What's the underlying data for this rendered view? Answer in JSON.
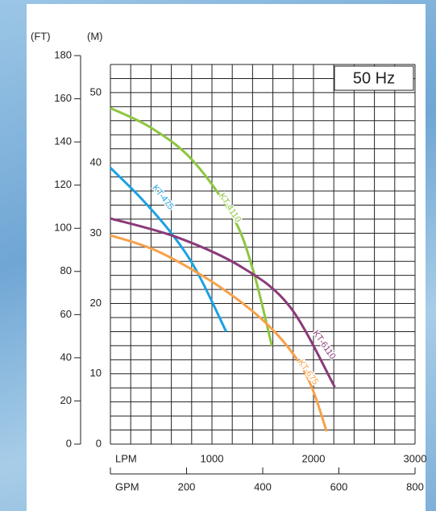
{
  "chart_data": {
    "type": "line",
    "y_label": "(M)",
    "y2_label": "(FT)",
    "x_label": "LPM",
    "x2_label": "GPM",
    "badge": "50 Hz",
    "ylim": [
      0,
      54
    ],
    "yticks": [
      0,
      10,
      20,
      30,
      40,
      50
    ],
    "y2lim": [
      0,
      180
    ],
    "y2ticks": [
      0,
      20,
      40,
      60,
      80,
      100,
      120,
      140,
      160,
      180
    ],
    "xlim": [
      0,
      3000
    ],
    "xticks": [
      1000,
      2000,
      3000
    ],
    "x2lim": [
      0,
      800
    ],
    "x2ticks": [
      200,
      400,
      600,
      800
    ],
    "grid": true,
    "x_gridlines": [
      0,
      200,
      400,
      600,
      800,
      1000,
      1200,
      1400,
      1600,
      1800,
      2000,
      2200,
      2400,
      2600,
      2800,
      3000
    ],
    "y_gridlines": [
      0,
      2,
      4,
      6,
      8,
      10,
      12,
      14,
      16,
      18,
      20,
      22,
      24,
      26,
      28,
      30,
      32,
      34,
      36,
      38,
      40,
      42,
      44,
      46,
      48,
      50,
      52,
      54
    ],
    "series": [
      {
        "name": "KT-4110",
        "color": "#8dc63f",
        "x": [
          0,
          400,
          800,
          1200,
          1400,
          1590
        ],
        "values": [
          47.8,
          45,
          40.5,
          32.5,
          25,
          14
        ]
      },
      {
        "name": "KT-475",
        "color": "#1ba1e2",
        "x": [
          0,
          300,
          600,
          850,
          1140
        ],
        "values": [
          39.3,
          35,
          30,
          24.6,
          16
        ]
      },
      {
        "name": "KT-6110",
        "color": "#8b3a7a",
        "x": [
          0,
          660,
          1290,
          1770,
          2210
        ],
        "values": [
          32.1,
          29.4,
          25.2,
          19.5,
          8.1
        ]
      },
      {
        "name": "KT-675",
        "color": "#f7a14a",
        "x": [
          0,
          500,
          1135,
          1610,
          1930,
          2130
        ],
        "values": [
          29.7,
          27.2,
          21.8,
          16.1,
          9.8,
          1.8
        ]
      }
    ]
  }
}
